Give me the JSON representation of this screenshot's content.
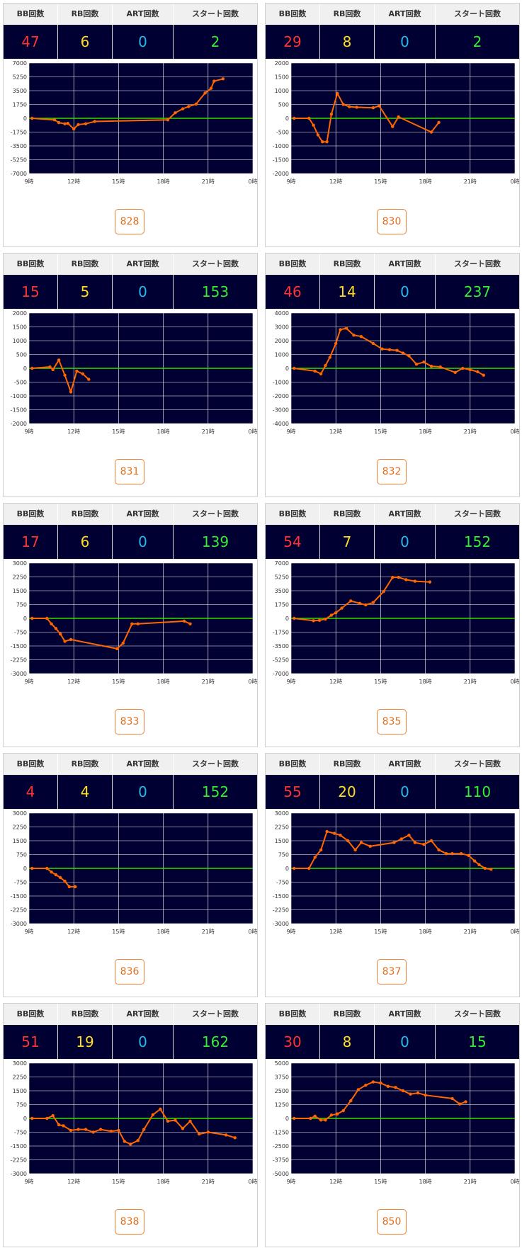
{
  "header_labels": {
    "bb": "BB回数",
    "rb": "RB回数",
    "art": "ART回数",
    "start": "スタート回数"
  },
  "colors": {
    "plot_bg": "#000033",
    "zero_line": "#33dd00",
    "series": "#ff6600",
    "bb": "#ff3333",
    "rb": "#ffdd22",
    "art": "#22bbee",
    "start": "#33ee33"
  },
  "x_ticks": [
    "9時",
    "12時",
    "15時",
    "18時",
    "21時",
    "0時"
  ],
  "chart_data": [
    {
      "type": "line",
      "machine": "828",
      "bb": "47",
      "rb": "6",
      "art": "0",
      "start": "2",
      "ylim": [
        -7000,
        7000
      ],
      "yticks": [
        "7000",
        "5250",
        "3500",
        "1750",
        "0",
        "-1750",
        "-3500",
        "-5250",
        "-7000"
      ],
      "x": [
        9.2,
        10.7,
        11.0,
        11.4,
        11.6,
        12.0,
        12.3,
        12.8,
        13.4,
        18.3,
        18.8,
        19.3,
        19.7,
        20.2,
        20.8,
        21.2,
        21.4,
        22.0
      ],
      "y": [
        0,
        -200,
        -550,
        -700,
        -650,
        -1350,
        -800,
        -700,
        -400,
        -200,
        700,
        1200,
        1500,
        1800,
        3200,
        3800,
        4700,
        5000
      ]
    },
    {
      "type": "line",
      "machine": "830",
      "bb": "29",
      "rb": "8",
      "art": "0",
      "start": "2",
      "ylim": [
        -2000,
        2000
      ],
      "yticks": [
        "2000",
        "1500",
        "1000",
        "500",
        "0",
        "-500",
        "-1000",
        "-1500",
        "-2000"
      ],
      "x": [
        9.2,
        10.2,
        10.5,
        10.8,
        11.1,
        11.4,
        11.7,
        12.1,
        12.5,
        12.9,
        13.4,
        14.5,
        14.9,
        15.8,
        16.2,
        18.4,
        18.9
      ],
      "y": [
        0,
        0,
        -250,
        -600,
        -850,
        -850,
        150,
        900,
        500,
        420,
        400,
        380,
        450,
        -300,
        50,
        -500,
        -150
      ]
    },
    {
      "type": "line",
      "machine": "831",
      "bb": "15",
      "rb": "5",
      "art": "0",
      "start": "153",
      "ylim": [
        -2000,
        2000
      ],
      "yticks": [
        "2000",
        "1500",
        "1000",
        "500",
        "0",
        "-500",
        "-1000",
        "-1500",
        "-2000"
      ],
      "x": [
        9.2,
        10.4,
        10.6,
        11.0,
        11.4,
        11.8,
        12.2,
        12.6,
        13.0
      ],
      "y": [
        0,
        50,
        -50,
        300,
        -250,
        -850,
        -100,
        -200,
        -400
      ]
    },
    {
      "type": "line",
      "machine": "832",
      "bb": "46",
      "rb": "14",
      "art": "0",
      "start": "237",
      "ylim": [
        -4000,
        4000
      ],
      "yticks": [
        "4000",
        "3000",
        "2000",
        "1000",
        "0",
        "-1000",
        "-2000",
        "-3000",
        "-4000"
      ],
      "x": [
        9.2,
        10.6,
        11.0,
        11.3,
        11.6,
        12.0,
        12.3,
        12.7,
        13.2,
        13.7,
        14.5,
        15.1,
        15.6,
        16.1,
        16.5,
        16.9,
        17.4,
        17.9,
        18.4,
        19.0,
        20.0,
        20.5,
        21.0,
        21.5,
        21.9
      ],
      "y": [
        0,
        -200,
        -400,
        200,
        800,
        1800,
        2800,
        2900,
        2400,
        2300,
        1800,
        1400,
        1350,
        1300,
        1100,
        900,
        300,
        450,
        150,
        100,
        -300,
        0,
        -100,
        -250,
        -500
      ]
    },
    {
      "type": "line",
      "machine": "833",
      "bb": "17",
      "rb": "6",
      "art": "0",
      "start": "139",
      "ylim": [
        -3000,
        3000
      ],
      "yticks": [
        "3000",
        "2250",
        "1500",
        "750",
        "0",
        "-750",
        "-1500",
        "-2250",
        "-3000"
      ],
      "x": [
        9.2,
        10.2,
        10.5,
        10.8,
        11.1,
        11.4,
        11.8,
        14.9,
        15.3,
        15.9,
        16.3,
        19.4,
        19.8
      ],
      "y": [
        0,
        0,
        -300,
        -550,
        -850,
        -1250,
        -1150,
        -1650,
        -1350,
        -300,
        -300,
        -150,
        -300
      ]
    },
    {
      "type": "line",
      "machine": "835",
      "bb": "54",
      "rb": "7",
      "art": "0",
      "start": "152",
      "ylim": [
        -7000,
        7000
      ],
      "yticks": [
        "7000",
        "5250",
        "3500",
        "1750",
        "0",
        "-1750",
        "-3500",
        "-5250",
        "-7000"
      ],
      "x": [
        9.2,
        10.5,
        10.9,
        11.3,
        11.7,
        12.0,
        12.4,
        13.0,
        13.6,
        14.0,
        14.5,
        15.2,
        15.8,
        16.2,
        16.7,
        17.3,
        18.3
      ],
      "y": [
        0,
        -300,
        -250,
        -100,
        400,
        700,
        1300,
        2200,
        1900,
        1700,
        2000,
        3400,
        5200,
        5200,
        4900,
        4700,
        4600
      ]
    },
    {
      "type": "line",
      "machine": "836",
      "bb": "4",
      "rb": "4",
      "art": "0",
      "start": "152",
      "ylim": [
        -3000,
        3000
      ],
      "yticks": [
        "3000",
        "2250",
        "1500",
        "750",
        "0",
        "-750",
        "-1500",
        "-2250",
        "-3000"
      ],
      "x": [
        9.2,
        10.2,
        10.5,
        10.8,
        11.1,
        11.4,
        11.7,
        12.1
      ],
      "y": [
        0,
        0,
        -200,
        -350,
        -500,
        -700,
        -1000,
        -1000
      ]
    },
    {
      "type": "line",
      "machine": "837",
      "bb": "55",
      "rb": "20",
      "art": "0",
      "start": "110",
      "ylim": [
        -3000,
        3000
      ],
      "yticks": [
        "3000",
        "2250",
        "1500",
        "750",
        "0",
        "-750",
        "-1500",
        "-2250",
        "-3000"
      ],
      "x": [
        9.2,
        10.2,
        10.6,
        11.0,
        11.4,
        11.9,
        12.3,
        12.8,
        13.3,
        13.7,
        14.3,
        15.9,
        16.4,
        16.9,
        17.3,
        17.9,
        18.4,
        18.9,
        19.4,
        19.8,
        20.4,
        20.9,
        21.3,
        21.6,
        22.0,
        22.4
      ],
      "y": [
        0,
        0,
        600,
        1000,
        2000,
        1900,
        1800,
        1500,
        1000,
        1400,
        1200,
        1400,
        1600,
        1800,
        1400,
        1300,
        1500,
        1000,
        800,
        800,
        800,
        700,
        400,
        200,
        0,
        -50
      ]
    },
    {
      "type": "line",
      "machine": "838",
      "bb": "51",
      "rb": "19",
      "art": "0",
      "start": "162",
      "ylim": [
        -3000,
        3000
      ],
      "yticks": [
        "3000",
        "2250",
        "1500",
        "750",
        "0",
        "-750",
        "-1500",
        "-2250",
        "-3000"
      ],
      "x": [
        9.2,
        10.2,
        10.6,
        11.0,
        11.3,
        11.8,
        12.3,
        12.8,
        13.3,
        13.8,
        14.5,
        15.0,
        15.4,
        15.8,
        16.3,
        16.7,
        17.3,
        17.8,
        18.3,
        18.8,
        19.3,
        19.8,
        20.4,
        21.0,
        22.2,
        22.8
      ],
      "y": [
        0,
        0,
        150,
        -350,
        -400,
        -650,
        -600,
        -600,
        -750,
        -600,
        -700,
        -650,
        -1250,
        -1400,
        -1200,
        -600,
        200,
        500,
        -150,
        -100,
        -550,
        -150,
        -850,
        -750,
        -900,
        -1050
      ]
    },
    {
      "type": "line",
      "machine": "850",
      "bb": "30",
      "rb": "8",
      "art": "0",
      "start": "15",
      "ylim": [
        -5000,
        5000
      ],
      "yticks": [
        "5000",
        "3750",
        "2500",
        "1250",
        "0",
        "-1250",
        "-2500",
        "-3750",
        "-5000"
      ],
      "x": [
        9.2,
        10.3,
        10.6,
        11.0,
        11.3,
        11.7,
        12.1,
        12.5,
        13.0,
        13.5,
        14.0,
        14.5,
        15.0,
        15.5,
        16.0,
        16.5,
        17.0,
        17.5,
        18.0,
        19.8,
        20.3,
        20.7
      ],
      "y": [
        0,
        0,
        200,
        -150,
        -150,
        300,
        400,
        700,
        1600,
        2600,
        3000,
        3300,
        3200,
        2900,
        2800,
        2500,
        2200,
        2300,
        2100,
        1800,
        1300,
        1500
      ]
    }
  ]
}
